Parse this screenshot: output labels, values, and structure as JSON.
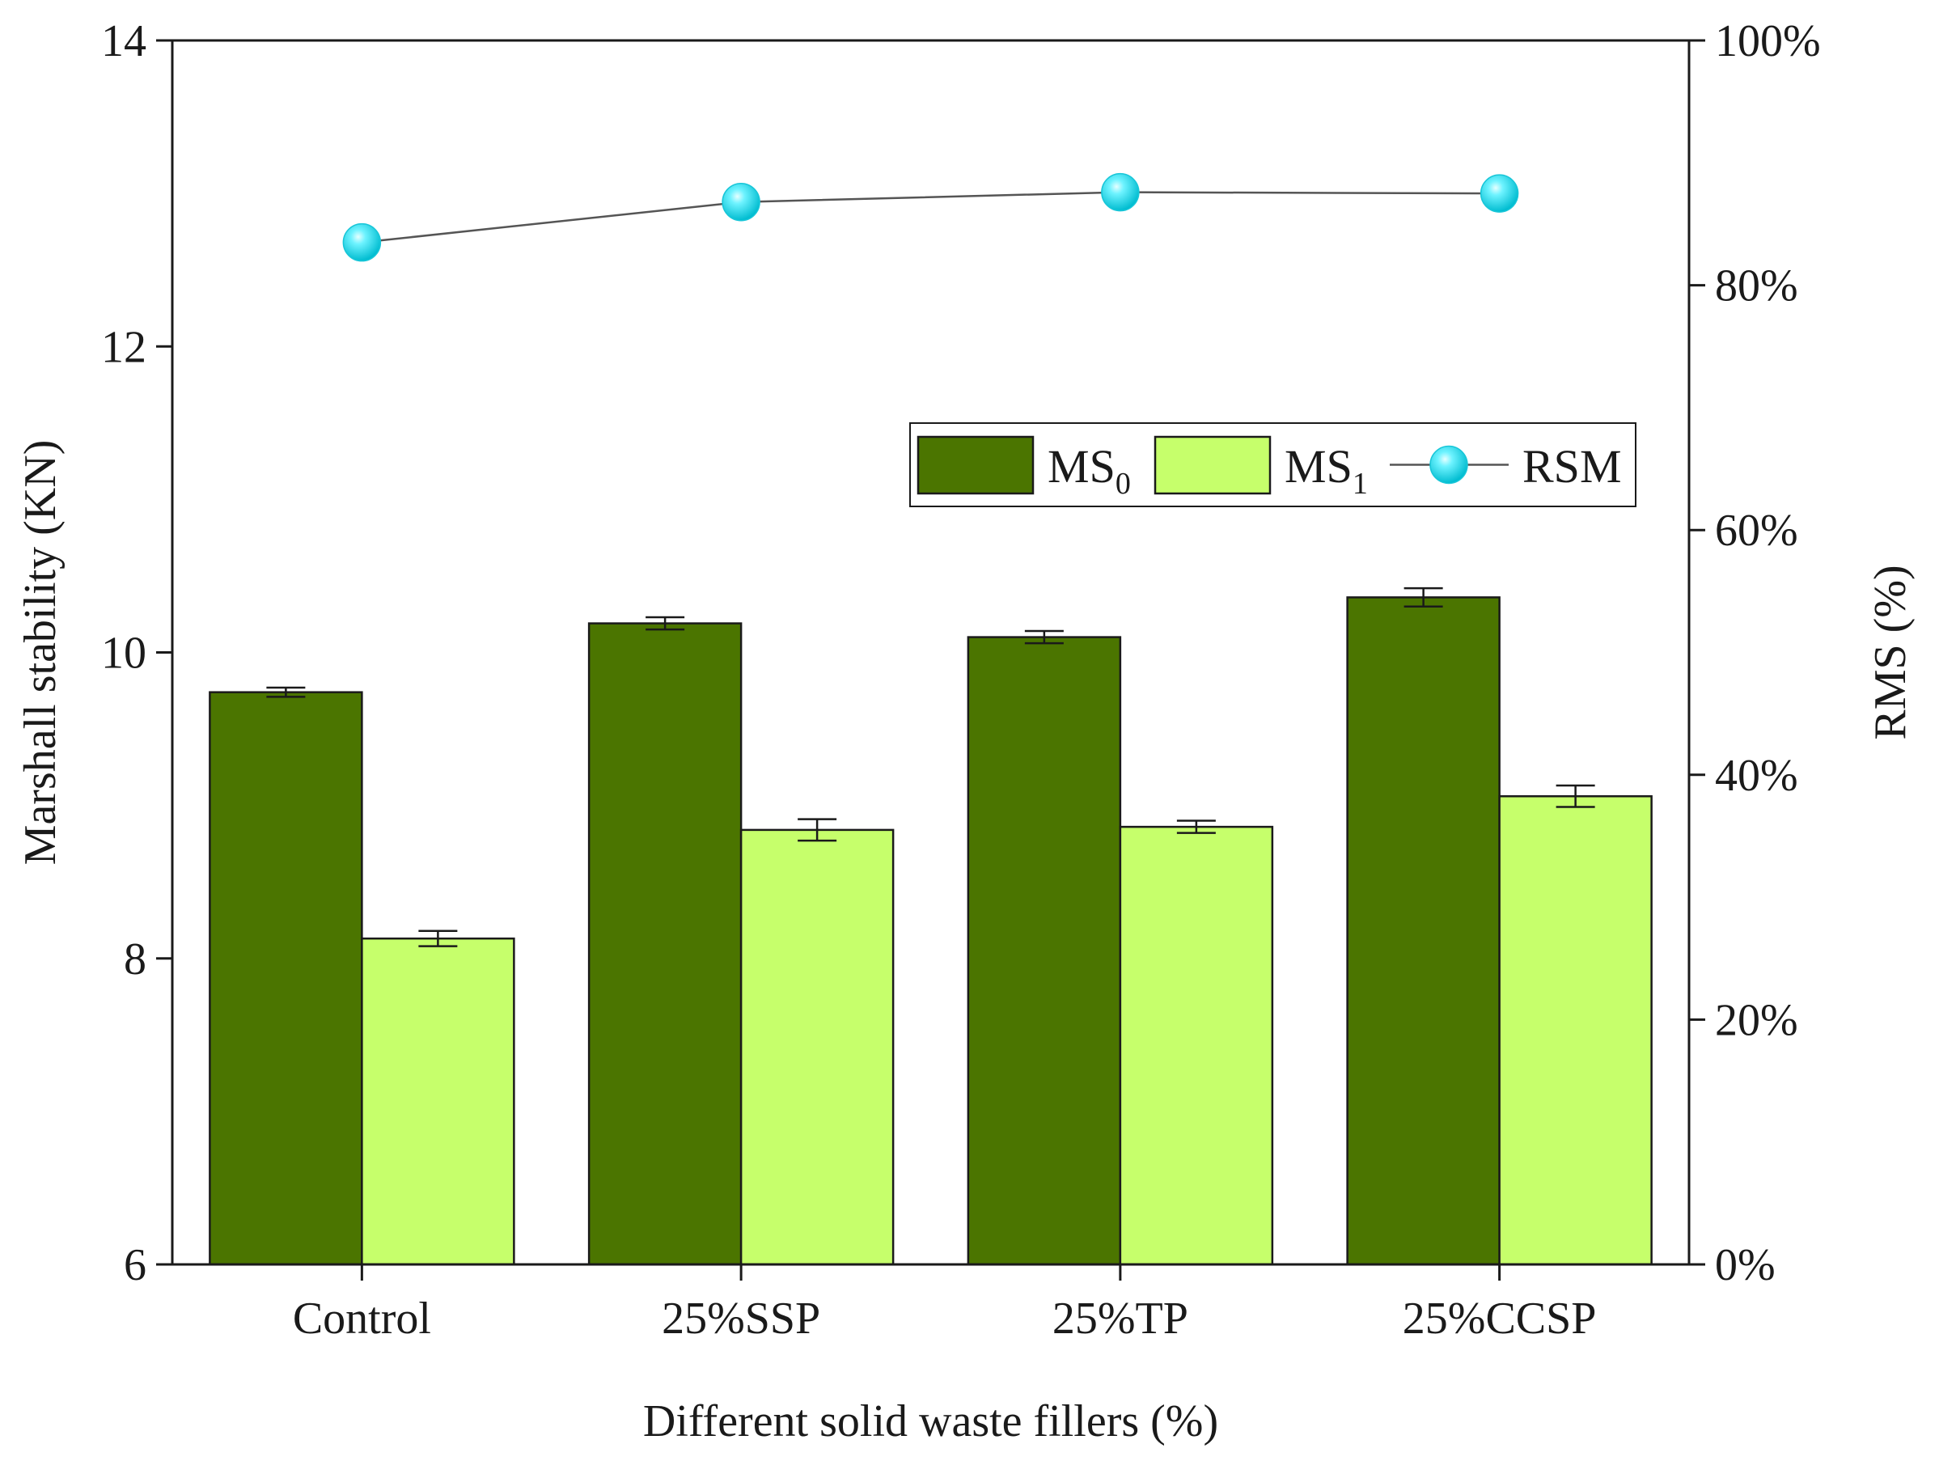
{
  "chart_data": {
    "type": "bar",
    "title": "",
    "categories": [
      "Control",
      "25%SSP",
      "25%TP",
      "25%CCSP"
    ],
    "xlabel": "Different solid waste fillers (%)",
    "ylabel": "Marshall stability (KN)",
    "y2label": "RMS (%)",
    "ylim": [
      6,
      14
    ],
    "yticks": [
      6,
      8,
      10,
      12,
      14
    ],
    "ytick_labels": [
      "6",
      "8",
      "10",
      "12",
      "14"
    ],
    "y2lim": [
      0,
      100
    ],
    "y2ticks": [
      0,
      20,
      40,
      60,
      80,
      100
    ],
    "y2tick_labels": [
      "0%",
      "20%",
      "40%",
      "60%",
      "80%",
      "100%"
    ],
    "grid": false,
    "legend_position": "upper-right",
    "series": [
      {
        "name": "MS0",
        "legend_main": "MS",
        "legend_sub": "0",
        "kind": "bar",
        "axis": "left",
        "color": "#4b7500",
        "values": [
          9.74,
          10.19,
          10.1,
          10.36
        ],
        "errors": [
          0.03,
          0.04,
          0.04,
          0.06
        ]
      },
      {
        "name": "MS1",
        "legend_main": "MS",
        "legend_sub": "1",
        "kind": "bar",
        "axis": "left",
        "color": "#c6ff6b",
        "values": [
          8.13,
          8.84,
          8.86,
          9.06
        ],
        "errors": [
          0.05,
          0.07,
          0.04,
          0.07
        ]
      },
      {
        "name": "RSM",
        "legend_main": "RSM",
        "legend_sub": "",
        "kind": "line",
        "axis": "right",
        "color": "#2fe0f0",
        "line_color": "#555555",
        "values": [
          83.5,
          86.8,
          87.6,
          87.5
        ]
      }
    ]
  }
}
